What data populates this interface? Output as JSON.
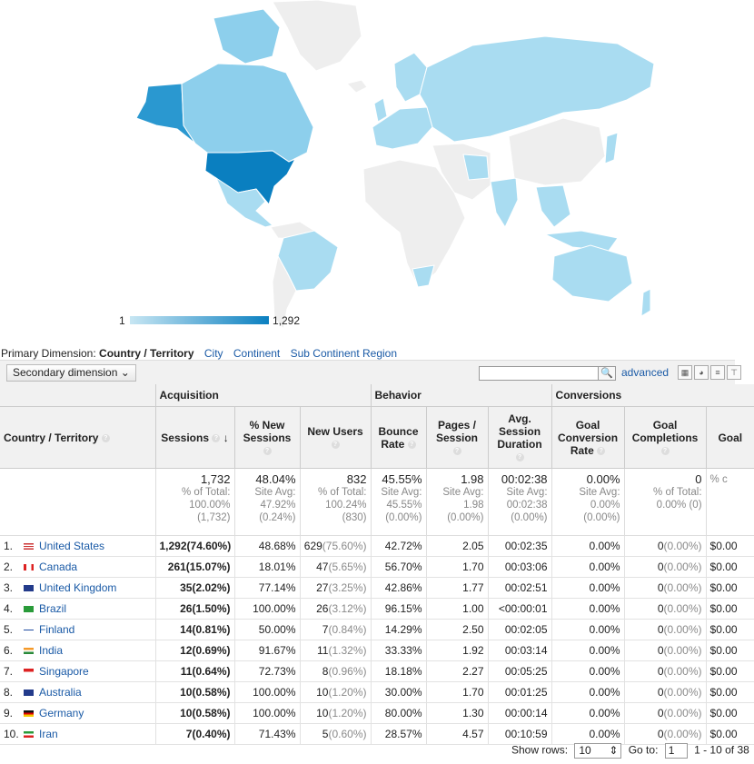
{
  "legend": {
    "min": "1",
    "max": "1,292"
  },
  "colors": {
    "land": "#eeeeee",
    "light": "#a9dcf1",
    "mid": "#8dcfec",
    "strong": "#2a98d0",
    "darkest": "#0a7fc0"
  },
  "primary": {
    "label": "Primary Dimension:",
    "value": "Country / Territory",
    "links": [
      "City",
      "Continent",
      "Sub Continent Region"
    ]
  },
  "toolbar": {
    "secondary": "Secondary dimension",
    "search_icon": "search-icon",
    "advanced": "advanced"
  },
  "groups": {
    "acquisition": "Acquisition",
    "behavior": "Behavior",
    "conversions": "Conversions"
  },
  "headers": [
    "Country / Territory",
    "Sessions",
    "% New Sessions",
    "New Users",
    "Bounce Rate",
    "Pages / Session",
    "Avg. Session Duration",
    "Goal Conversion Rate",
    "Goal Completions",
    "Goal"
  ],
  "totals": [
    {
      "big": "1,732",
      "l1": "% of Total:",
      "l2": "100.00%",
      "l3": "(1,732)",
      "l4": ""
    },
    {
      "big": "48.04%",
      "l1": "Site Avg:",
      "l2": "47.92%",
      "l3": "(0.24%)",
      "l4": ""
    },
    {
      "big": "832",
      "l1": "% of Total:",
      "l2": "100.24%",
      "l3": "(830)",
      "l4": ""
    },
    {
      "big": "45.55%",
      "l1": "Site Avg:",
      "l2": "45.55%",
      "l3": "(0.00%)",
      "l4": ""
    },
    {
      "big": "1.98",
      "l1": "Site Avg:",
      "l2": "1.98",
      "l3": "(0.00%)",
      "l4": ""
    },
    {
      "big": "00:02:38",
      "l1": "Site Avg:",
      "l2": "00:02:38",
      "l3": "(0.00%)",
      "l4": ""
    },
    {
      "big": "0.00%",
      "l1": "Site Avg:",
      "l2": "0.00%",
      "l3": "(0.00%)",
      "l4": ""
    },
    {
      "big": "0",
      "l1": "% of Total:",
      "l2": "0.00% (0)",
      "l3": "",
      "l4": ""
    },
    {
      "big": "",
      "l1": "% c",
      "l2": "",
      "l3": "",
      "l4": ""
    }
  ],
  "rows": [
    {
      "n": "1.",
      "country": "United States",
      "flag": "us",
      "sessions": "1,292",
      "sessions_pct": "(74.60%)",
      "new_sessions": "48.68%",
      "new_users": "629",
      "new_users_pct": "(75.60%)",
      "bounce": "42.72%",
      "pages": "2.05",
      "duration": "00:02:35",
      "conv": "0.00%",
      "goal": "0",
      "goal_pct": "(0.00%)",
      "value": "$0.00"
    },
    {
      "n": "2.",
      "country": "Canada",
      "flag": "ca",
      "sessions": "261",
      "sessions_pct": "(15.07%)",
      "new_sessions": "18.01%",
      "new_users": "47",
      "new_users_pct": "(5.65%)",
      "bounce": "56.70%",
      "pages": "1.70",
      "duration": "00:03:06",
      "conv": "0.00%",
      "goal": "0",
      "goal_pct": "(0.00%)",
      "value": "$0.00"
    },
    {
      "n": "3.",
      "country": "United Kingdom",
      "flag": "gb",
      "sessions": "35",
      "sessions_pct": "(2.02%)",
      "new_sessions": "77.14%",
      "new_users": "27",
      "new_users_pct": "(3.25%)",
      "bounce": "42.86%",
      "pages": "1.77",
      "duration": "00:02:51",
      "conv": "0.00%",
      "goal": "0",
      "goal_pct": "(0.00%)",
      "value": "$0.00"
    },
    {
      "n": "4.",
      "country": "Brazil",
      "flag": "br",
      "sessions": "26",
      "sessions_pct": "(1.50%)",
      "new_sessions": "100.00%",
      "new_users": "26",
      "new_users_pct": "(3.12%)",
      "bounce": "96.15%",
      "pages": "1.00",
      "duration": "<00:00:01",
      "conv": "0.00%",
      "goal": "0",
      "goal_pct": "(0.00%)",
      "value": "$0.00"
    },
    {
      "n": "5.",
      "country": "Finland",
      "flag": "fi",
      "sessions": "14",
      "sessions_pct": "(0.81%)",
      "new_sessions": "50.00%",
      "new_users": "7",
      "new_users_pct": "(0.84%)",
      "bounce": "14.29%",
      "pages": "2.50",
      "duration": "00:02:05",
      "conv": "0.00%",
      "goal": "0",
      "goal_pct": "(0.00%)",
      "value": "$0.00"
    },
    {
      "n": "6.",
      "country": "India",
      "flag": "in",
      "sessions": "12",
      "sessions_pct": "(0.69%)",
      "new_sessions": "91.67%",
      "new_users": "11",
      "new_users_pct": "(1.32%)",
      "bounce": "33.33%",
      "pages": "1.92",
      "duration": "00:03:14",
      "conv": "0.00%",
      "goal": "0",
      "goal_pct": "(0.00%)",
      "value": "$0.00"
    },
    {
      "n": "7.",
      "country": "Singapore",
      "flag": "sg",
      "sessions": "11",
      "sessions_pct": "(0.64%)",
      "new_sessions": "72.73%",
      "new_users": "8",
      "new_users_pct": "(0.96%)",
      "bounce": "18.18%",
      "pages": "2.27",
      "duration": "00:05:25",
      "conv": "0.00%",
      "goal": "0",
      "goal_pct": "(0.00%)",
      "value": "$0.00"
    },
    {
      "n": "8.",
      "country": "Australia",
      "flag": "au",
      "sessions": "10",
      "sessions_pct": "(0.58%)",
      "new_sessions": "100.00%",
      "new_users": "10",
      "new_users_pct": "(1.20%)",
      "bounce": "30.00%",
      "pages": "1.70",
      "duration": "00:01:25",
      "conv": "0.00%",
      "goal": "0",
      "goal_pct": "(0.00%)",
      "value": "$0.00"
    },
    {
      "n": "9.",
      "country": "Germany",
      "flag": "de",
      "sessions": "10",
      "sessions_pct": "(0.58%)",
      "new_sessions": "100.00%",
      "new_users": "10",
      "new_users_pct": "(1.20%)",
      "bounce": "80.00%",
      "pages": "1.30",
      "duration": "00:00:14",
      "conv": "0.00%",
      "goal": "0",
      "goal_pct": "(0.00%)",
      "value": "$0.00"
    },
    {
      "n": "10.",
      "country": "Iran",
      "flag": "ir",
      "sessions": "7",
      "sessions_pct": "(0.40%)",
      "new_sessions": "71.43%",
      "new_users": "5",
      "new_users_pct": "(0.60%)",
      "bounce": "28.57%",
      "pages": "4.57",
      "duration": "00:10:59",
      "conv": "0.00%",
      "goal": "0",
      "goal_pct": "(0.00%)",
      "value": "$0.00"
    }
  ],
  "footer": {
    "show_rows": "Show rows:",
    "rows_value": "10",
    "goto": "Go to:",
    "goto_value": "1",
    "range": "1 - 10 of 38"
  }
}
